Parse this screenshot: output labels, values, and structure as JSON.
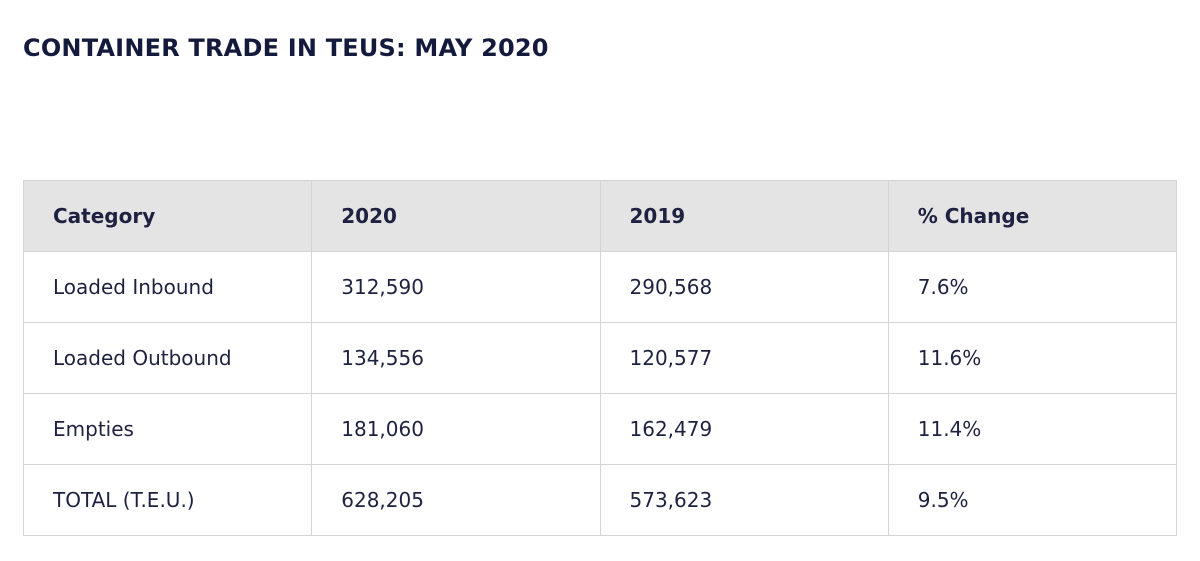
{
  "title": "CONTAINER TRADE IN TEUS: MAY 2020",
  "table": {
    "headers": [
      "Category",
      "2020",
      "2019",
      "% Change"
    ],
    "rows": [
      [
        "Loaded Inbound",
        "312,590",
        "290,568",
        "7.6%"
      ],
      [
        "Loaded Outbound",
        "134,556",
        "120,577",
        "11.6%"
      ],
      [
        "Empties",
        "181,060",
        "162,479",
        "11.4%"
      ],
      [
        "TOTAL (T.E.U.)",
        "628,205",
        "573,623",
        "9.5%"
      ]
    ]
  }
}
